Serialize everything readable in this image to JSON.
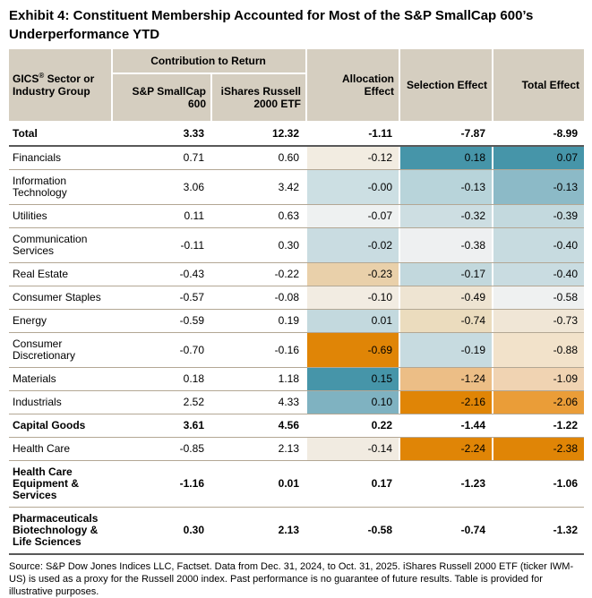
{
  "title": "Exhibit 4: Constituent Membership Accounted for Most of the S&P SmallCap 600’s Underperformance YTD",
  "table": {
    "headers": {
      "sector_name": "GICS",
      "sector_reg": "®",
      "sector_rest": " Sector or Industry Group",
      "contribution_group": "Contribution to Return",
      "sp600": "S&P SmallCap 600",
      "ishares": "iShares Russell 2000 ETF",
      "allocation": "Allocation Effect",
      "selection": "Selection Effect",
      "total": "Total Effect"
    },
    "rows": [
      {
        "label": "Total",
        "bold": true,
        "values": [
          "3.33",
          "12.32",
          "-1.11",
          "-7.87",
          "-8.99"
        ],
        "bgs": [
          "",
          "",
          ""
        ]
      },
      {
        "label": "Financials",
        "bold": false,
        "values": [
          "0.71",
          "0.60",
          "-0.12",
          "0.18",
          "0.07"
        ],
        "bgs": [
          "#f2ece1",
          "#4695a9",
          "#4695a9"
        ]
      },
      {
        "label": "Information Technology",
        "bold": false,
        "values": [
          "3.06",
          "3.42",
          "-0.00",
          "-0.13",
          "-0.13"
        ],
        "bgs": [
          "#ccdfe3",
          "#b8d4da",
          "#8cbac7"
        ]
      },
      {
        "label": "Utilities",
        "bold": false,
        "values": [
          "0.11",
          "0.63",
          "-0.07",
          "-0.32",
          "-0.39"
        ],
        "bgs": [
          "#eef1f1",
          "#cddee2",
          "#c3d9de"
        ]
      },
      {
        "label": "Communication Services",
        "bold": false,
        "values": [
          "-0.11",
          "0.30",
          "-0.02",
          "-0.38",
          "-0.40"
        ],
        "bgs": [
          "#c9dce1",
          "#eef0f1",
          "#c7dbe0"
        ]
      },
      {
        "label": "Real Estate",
        "bold": false,
        "values": [
          "-0.43",
          "-0.22",
          "-0.23",
          "-0.17",
          "-0.40"
        ],
        "bgs": [
          "#e9d0aa",
          "#c2d8dd",
          "#c9dce1"
        ]
      },
      {
        "label": "Consumer Staples",
        "bold": false,
        "values": [
          "-0.57",
          "-0.08",
          "-0.10",
          "-0.49",
          "-0.58"
        ],
        "bgs": [
          "#f2ece2",
          "#eee4d2",
          "#eff1f1"
        ]
      },
      {
        "label": "Energy",
        "bold": false,
        "values": [
          "-0.59",
          "0.19",
          "0.01",
          "-0.74",
          "-0.73"
        ],
        "bgs": [
          "#c3d9de",
          "#ebdcbe",
          "#f0e6d6"
        ]
      },
      {
        "label": "Consumer Discretionary",
        "bold": false,
        "values": [
          "-0.70",
          "-0.16",
          "-0.69",
          "-0.19",
          "-0.88"
        ],
        "bgs": [
          "#e08506",
          "#c7dbe0",
          "#f2e2ca"
        ]
      },
      {
        "label": "Materials",
        "bold": false,
        "values": [
          "0.18",
          "1.18",
          "0.15",
          "-1.24",
          "-1.09"
        ],
        "bgs": [
          "#4695a9",
          "#ecbe86",
          "#f0d3b2"
        ]
      },
      {
        "label": "Industrials",
        "bold": false,
        "values": [
          "2.52",
          "4.33",
          "0.10",
          "-2.16",
          "-2.06"
        ],
        "bgs": [
          "#7fb2c1",
          "#e08506",
          "#ea9d38"
        ]
      },
      {
        "label": "Capital Goods",
        "bold": true,
        "values": [
          "3.61",
          "4.56",
          "0.22",
          "-1.44",
          "-1.22"
        ],
        "bgs": [
          "",
          "",
          ""
        ]
      },
      {
        "label": "Health Care",
        "bold": false,
        "values": [
          "-0.85",
          "2.13",
          "-0.14",
          "-2.24",
          "-2.38"
        ],
        "bgs": [
          "#f1ebe1",
          "#e08506",
          "#e08506"
        ]
      },
      {
        "label": "Health Care Equipment & Services",
        "bold": true,
        "values": [
          "-1.16",
          "0.01",
          "0.17",
          "-1.23",
          "-1.06"
        ],
        "bgs": [
          "",
          "",
          ""
        ]
      },
      {
        "label": "Pharmaceuticals Biotechnology & Life Sciences",
        "bold": true,
        "values": [
          "0.30",
          "2.13",
          "-0.58",
          "-0.74",
          "-1.32"
        ],
        "bgs": [
          "",
          "",
          ""
        ]
      }
    ],
    "value_column_names": [
      "sp600-contribution",
      "ishares-contribution",
      "allocation-effect",
      "selection-effect",
      "total-effect"
    ]
  },
  "source": "Source: S&P Dow Jones Indices LLC, Factset. Data from Dec. 31, 2024, to Oct. 31, 2025. iShares Russell 2000 ETF (ticker IWM-US) is used as a proxy for the Russell 2000 index. Past performance is no guarantee of future results. Table is provided for illustrative purposes."
}
